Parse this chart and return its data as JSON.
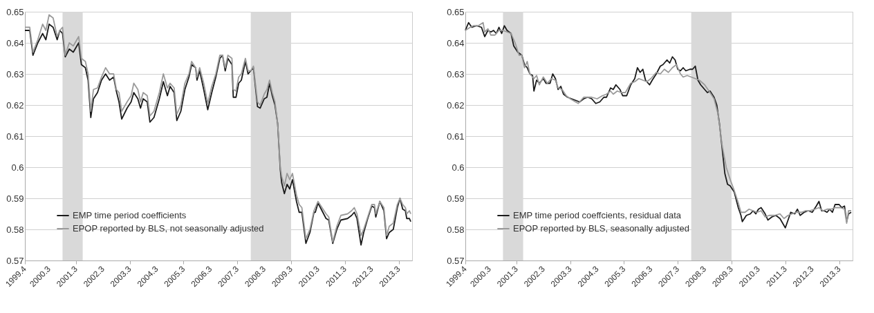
{
  "chart_data": [
    {
      "type": "line",
      "xlim": [
        1999.4,
        2013.8
      ],
      "ylim": [
        0.57,
        0.65
      ],
      "yticks": [
        0.57,
        0.58,
        0.59,
        0.6,
        0.61,
        0.62,
        0.63,
        0.64,
        0.65
      ],
      "xticks": [
        1999.4,
        2000.3,
        2001.3,
        2002.3,
        2003.3,
        2004.3,
        2005.3,
        2006.3,
        2007.3,
        2008.3,
        2009.3,
        2010.3,
        2011.3,
        2012.3,
        2013.3
      ],
      "grid": "y",
      "legend": "bottom left",
      "bands": [
        {
          "axis": "x",
          "from": 2000.8,
          "to": 2001.55,
          "color": "#d9d9d9"
        },
        {
          "axis": "x",
          "from": 2007.8,
          "to": 2009.3,
          "color": "#d9d9d9"
        }
      ],
      "series": [
        {
          "name": "EMP time period coefficients",
          "color": "#1a1a1a",
          "x": [
            1999.4,
            1999.58,
            1999.7,
            1999.88,
            2000.06,
            2000.18,
            2000.3,
            2000.45,
            2000.6,
            2000.7,
            2000.8,
            2000.9,
            2001.05,
            2001.2,
            2001.4,
            2001.5,
            2001.65,
            2001.75,
            2001.85,
            2001.95,
            2002.1,
            2002.25,
            2002.4,
            2002.55,
            2002.7,
            2002.8,
            2002.9,
            2003.0,
            2003.2,
            2003.35,
            2003.45,
            2003.6,
            2003.7,
            2003.8,
            2003.95,
            2004.05,
            2004.2,
            2004.4,
            2004.55,
            2004.7,
            2004.8,
            2004.95,
            2005.05,
            2005.2,
            2005.35,
            2005.5,
            2005.6,
            2005.75,
            2005.8,
            2005.9,
            2006.05,
            2006.2,
            2006.35,
            2006.5,
            2006.65,
            2006.75,
            2006.85,
            2006.95,
            2007.1,
            2007.15,
            2007.25,
            2007.35,
            2007.45,
            2007.6,
            2007.7,
            2007.8,
            2007.9,
            2008.05,
            2008.15,
            2008.3,
            2008.4,
            2008.5,
            2008.6,
            2008.7,
            2008.8,
            2008.9,
            2008.95,
            2009.05,
            2009.15,
            2009.25,
            2009.35,
            2009.5,
            2009.6,
            2009.7,
            2009.85,
            2010.0,
            2010.15,
            2010.2,
            2010.3,
            2010.45,
            2010.6,
            2010.7,
            2010.85,
            2011.0,
            2011.15,
            2011.4,
            2011.55,
            2011.65,
            2011.75,
            2011.9,
            2012.0,
            2012.15,
            2012.3,
            2012.4,
            2012.45,
            2012.6,
            2012.75,
            2012.85,
            2012.95,
            2013.1,
            2013.25,
            2013.35,
            2013.45,
            2013.55,
            2013.6,
            2013.7,
            2013.75
          ],
          "values": [
            0.644,
            0.644,
            0.636,
            0.64,
            0.643,
            0.641,
            0.646,
            0.645,
            0.641,
            0.644,
            0.643,
            0.6355,
            0.638,
            0.637,
            0.64,
            0.633,
            0.632,
            0.628,
            0.616,
            0.622,
            0.624,
            0.628,
            0.63,
            0.628,
            0.629,
            0.6245,
            0.621,
            0.6155,
            0.619,
            0.621,
            0.624,
            0.622,
            0.619,
            0.622,
            0.621,
            0.6145,
            0.616,
            0.622,
            0.6275,
            0.623,
            0.626,
            0.624,
            0.615,
            0.618,
            0.625,
            0.629,
            0.633,
            0.632,
            0.628,
            0.631,
            0.625,
            0.6185,
            0.624,
            0.629,
            0.635,
            0.636,
            0.631,
            0.635,
            0.633,
            0.6225,
            0.6225,
            0.627,
            0.628,
            0.634,
            0.63,
            0.631,
            0.632,
            0.6195,
            0.619,
            0.622,
            0.6225,
            0.627,
            0.623,
            0.62,
            0.614,
            0.599,
            0.595,
            0.5915,
            0.5945,
            0.593,
            0.596,
            0.589,
            0.5855,
            0.5855,
            0.5755,
            0.579,
            0.5855,
            0.5855,
            0.5885,
            0.586,
            0.5835,
            0.583,
            0.5755,
            0.58,
            0.583,
            0.5835,
            0.5845,
            0.5855,
            0.5835,
            0.575,
            0.579,
            0.5835,
            0.5875,
            0.587,
            0.584,
            0.589,
            0.586,
            0.577,
            0.579,
            0.58,
            0.587,
            0.59,
            0.5865,
            0.586,
            0.5835,
            0.5835,
            0.5825
          ]
        },
        {
          "name": "EPOP reported by BLS, not seasonally adjusted",
          "color": "#9a9a9a",
          "x": [
            1999.4,
            1999.58,
            1999.7,
            1999.88,
            2000.06,
            2000.18,
            2000.3,
            2000.45,
            2000.6,
            2000.7,
            2000.8,
            2000.9,
            2001.05,
            2001.2,
            2001.4,
            2001.5,
            2001.65,
            2001.75,
            2001.85,
            2001.95,
            2002.1,
            2002.25,
            2002.4,
            2002.55,
            2002.7,
            2002.8,
            2002.9,
            2003.0,
            2003.2,
            2003.35,
            2003.45,
            2003.6,
            2003.7,
            2003.8,
            2003.95,
            2004.05,
            2004.2,
            2004.4,
            2004.55,
            2004.7,
            2004.8,
            2004.95,
            2005.05,
            2005.2,
            2005.35,
            2005.5,
            2005.6,
            2005.75,
            2005.8,
            2005.9,
            2006.05,
            2006.2,
            2006.35,
            2006.5,
            2006.65,
            2006.75,
            2006.85,
            2006.95,
            2007.1,
            2007.15,
            2007.25,
            2007.35,
            2007.45,
            2007.6,
            2007.7,
            2007.8,
            2007.9,
            2008.05,
            2008.15,
            2008.3,
            2008.4,
            2008.5,
            2008.6,
            2008.7,
            2008.8,
            2008.9,
            2008.95,
            2009.05,
            2009.15,
            2009.25,
            2009.35,
            2009.5,
            2009.6,
            2009.7,
            2009.85,
            2010.0,
            2010.15,
            2010.2,
            2010.3,
            2010.45,
            2010.6,
            2010.7,
            2010.85,
            2011.0,
            2011.15,
            2011.4,
            2011.55,
            2011.65,
            2011.75,
            2011.9,
            2012.0,
            2012.15,
            2012.3,
            2012.4,
            2012.45,
            2012.6,
            2012.75,
            2012.85,
            2012.95,
            2013.1,
            2013.25,
            2013.35,
            2013.45,
            2013.55,
            2013.6,
            2013.7,
            2013.75
          ],
          "values": [
            0.645,
            0.645,
            0.637,
            0.641,
            0.646,
            0.644,
            0.649,
            0.648,
            0.642,
            0.644,
            0.645,
            0.636,
            0.64,
            0.639,
            0.642,
            0.635,
            0.634,
            0.63,
            0.618,
            0.625,
            0.6255,
            0.629,
            0.632,
            0.63,
            0.63,
            0.625,
            0.624,
            0.618,
            0.621,
            0.623,
            0.627,
            0.625,
            0.621,
            0.624,
            0.623,
            0.6165,
            0.618,
            0.624,
            0.63,
            0.6255,
            0.627,
            0.6255,
            0.617,
            0.62,
            0.627,
            0.63,
            0.634,
            0.632,
            0.629,
            0.632,
            0.627,
            0.6205,
            0.626,
            0.63,
            0.636,
            0.636,
            0.632,
            0.636,
            0.635,
            0.625,
            0.6245,
            0.629,
            0.63,
            0.635,
            0.631,
            0.631,
            0.6325,
            0.621,
            0.62,
            0.6235,
            0.625,
            0.628,
            0.624,
            0.621,
            0.614,
            0.6,
            0.597,
            0.594,
            0.598,
            0.596,
            0.598,
            0.591,
            0.588,
            0.587,
            0.577,
            0.58,
            0.586,
            0.587,
            0.589,
            0.587,
            0.585,
            0.584,
            0.576,
            0.581,
            0.5845,
            0.585,
            0.586,
            0.587,
            0.585,
            0.578,
            0.58,
            0.584,
            0.588,
            0.588,
            0.585,
            0.589,
            0.587,
            0.578,
            0.581,
            0.582,
            0.588,
            0.59,
            0.588,
            0.587,
            0.585,
            0.586,
            0.585
          ]
        }
      ]
    },
    {
      "type": "line",
      "xlim": [
        1999.4,
        2013.8
      ],
      "ylim": [
        0.57,
        0.65
      ],
      "yticks": [
        0.57,
        0.58,
        0.59,
        0.6,
        0.61,
        0.62,
        0.63,
        0.64,
        0.65
      ],
      "xticks": [
        1999.4,
        2000.3,
        2001.3,
        2002.3,
        2003.3,
        2004.3,
        2005.3,
        2006.3,
        2007.3,
        2008.3,
        2009.3,
        2010.3,
        2011.3,
        2012.3,
        2013.3
      ],
      "grid": "y",
      "legend": "bottom left",
      "bands": [
        {
          "axis": "x",
          "from": 2000.8,
          "to": 2001.55,
          "color": "#d9d9d9"
        },
        {
          "axis": "x",
          "from": 2007.8,
          "to": 2009.3,
          "color": "#d9d9d9"
        }
      ],
      "series": [
        {
          "name": "EMP time period coeffcients, residual data",
          "color": "#1a1a1a",
          "x": [
            1999.4,
            1999.52,
            1999.64,
            1999.82,
            2000.0,
            2000.12,
            2000.24,
            2000.35,
            2000.45,
            2000.55,
            2000.65,
            2000.75,
            2000.85,
            2000.95,
            2001.1,
            2001.2,
            2001.35,
            2001.5,
            2001.6,
            2001.7,
            2001.8,
            2001.9,
            2001.95,
            2002.05,
            2002.15,
            2002.3,
            2002.4,
            2002.55,
            2002.65,
            2002.75,
            2002.85,
            2002.95,
            2003.05,
            2003.2,
            2003.35,
            2003.5,
            2003.65,
            2003.8,
            2003.95,
            2004.1,
            2004.25,
            2004.4,
            2004.55,
            2004.65,
            2004.8,
            2004.9,
            2005.0,
            2005.15,
            2005.25,
            2005.4,
            2005.55,
            2005.7,
            2005.8,
            2005.9,
            2006.0,
            2006.1,
            2006.25,
            2006.35,
            2006.5,
            2006.65,
            2006.75,
            2006.9,
            2007.0,
            2007.1,
            2007.2,
            2007.3,
            2007.4,
            2007.5,
            2007.6,
            2007.75,
            2007.85,
            2007.95,
            2008.05,
            2008.15,
            2008.3,
            2008.4,
            2008.5,
            2008.65,
            2008.75,
            2008.85,
            2008.95,
            2009.05,
            2009.15,
            2009.25,
            2009.4,
            2009.55,
            2009.65,
            2009.7,
            2009.85,
            2010.0,
            2010.1,
            2010.2,
            2010.3,
            2010.4,
            2010.55,
            2010.65,
            2010.8,
            2010.95,
            2011.1,
            2011.3,
            2011.4,
            2011.5,
            2011.65,
            2011.75,
            2011.85,
            2012.0,
            2012.15,
            2012.3,
            2012.45,
            2012.55,
            2012.65,
            2012.75,
            2012.85,
            2012.95,
            2013.05,
            2013.15,
            2013.3,
            2013.4,
            2013.5,
            2013.58,
            2013.65,
            2013.75
          ],
          "values": [
            0.644,
            0.6465,
            0.645,
            0.6455,
            0.645,
            0.642,
            0.644,
            0.6435,
            0.644,
            0.643,
            0.645,
            0.643,
            0.6455,
            0.644,
            0.643,
            0.639,
            0.637,
            0.636,
            0.633,
            0.632,
            0.63,
            0.6295,
            0.6245,
            0.628,
            0.627,
            0.6285,
            0.627,
            0.627,
            0.63,
            0.6285,
            0.625,
            0.626,
            0.6235,
            0.6225,
            0.622,
            0.6215,
            0.621,
            0.622,
            0.6225,
            0.622,
            0.6205,
            0.621,
            0.6225,
            0.6225,
            0.6255,
            0.625,
            0.6265,
            0.625,
            0.623,
            0.623,
            0.6265,
            0.6285,
            0.632,
            0.6305,
            0.6315,
            0.628,
            0.6265,
            0.628,
            0.63,
            0.6325,
            0.633,
            0.6345,
            0.6335,
            0.6355,
            0.6345,
            0.6315,
            0.631,
            0.632,
            0.631,
            0.6315,
            0.6315,
            0.6325,
            0.628,
            0.6265,
            0.625,
            0.624,
            0.6245,
            0.6225,
            0.62,
            0.614,
            0.606,
            0.598,
            0.5945,
            0.594,
            0.592,
            0.587,
            0.5845,
            0.5825,
            0.5845,
            0.585,
            0.586,
            0.585,
            0.5865,
            0.587,
            0.585,
            0.583,
            0.584,
            0.5845,
            0.5835,
            0.5805,
            0.583,
            0.5855,
            0.585,
            0.5865,
            0.5845,
            0.5855,
            0.586,
            0.5855,
            0.5875,
            0.589,
            0.586,
            0.586,
            0.5855,
            0.5865,
            0.5855,
            0.588,
            0.588,
            0.587,
            0.5875,
            0.5825,
            0.585,
            0.5855
          ]
        },
        {
          "name": "EPOP reported by BLS, seasonally adjusted",
          "color": "#9a9a9a",
          "x": [
            1999.4,
            1999.58,
            1999.7,
            1999.88,
            2000.06,
            2000.12,
            2000.24,
            2000.35,
            2000.5,
            2000.65,
            2000.8,
            2000.95,
            2001.1,
            2001.25,
            2001.4,
            2001.5,
            2001.6,
            2001.7,
            2001.8,
            2001.95,
            2002.05,
            2002.15,
            2002.3,
            2002.45,
            2002.6,
            2002.75,
            2002.85,
            2003.0,
            2003.15,
            2003.3,
            2003.5,
            2003.6,
            2003.8,
            2003.95,
            2004.1,
            2004.3,
            2004.5,
            2004.65,
            2004.8,
            2004.9,
            2005.05,
            2005.2,
            2005.35,
            2005.55,
            2005.7,
            2005.85,
            2006.0,
            2006.15,
            2006.3,
            2006.5,
            2006.65,
            2006.8,
            2006.95,
            2007.1,
            2007.25,
            2007.4,
            2007.5,
            2007.65,
            2007.8,
            2007.95,
            2008.1,
            2008.3,
            2008.5,
            2008.65,
            2008.8,
            2008.95,
            2009.1,
            2009.25,
            2009.4,
            2009.55,
            2009.65,
            2009.8,
            2009.95,
            2010.1,
            2010.25,
            2010.4,
            2010.55,
            2010.7,
            2010.9,
            2011.1,
            2011.25,
            2011.4,
            2011.55,
            2011.7,
            2011.9,
            2012.05,
            2012.2,
            2012.4,
            2012.55,
            2012.7,
            2012.85,
            2013.0,
            2013.15,
            2013.35,
            2013.5,
            2013.58,
            2013.65,
            2013.75
          ],
          "values": [
            0.644,
            0.645,
            0.6455,
            0.6455,
            0.6465,
            0.6435,
            0.6445,
            0.6425,
            0.6425,
            0.644,
            0.644,
            0.6435,
            0.643,
            0.64,
            0.636,
            0.636,
            0.632,
            0.634,
            0.63,
            0.6285,
            0.6295,
            0.6265,
            0.629,
            0.627,
            0.6285,
            0.628,
            0.6255,
            0.625,
            0.623,
            0.622,
            0.621,
            0.6205,
            0.6225,
            0.6225,
            0.6225,
            0.622,
            0.623,
            0.6235,
            0.6245,
            0.6235,
            0.6245,
            0.624,
            0.624,
            0.627,
            0.6275,
            0.6285,
            0.628,
            0.6275,
            0.6285,
            0.6305,
            0.63,
            0.6315,
            0.6305,
            0.632,
            0.633,
            0.63,
            0.629,
            0.6295,
            0.629,
            0.6285,
            0.628,
            0.6265,
            0.624,
            0.622,
            0.617,
            0.607,
            0.6,
            0.596,
            0.5925,
            0.5885,
            0.5855,
            0.5855,
            0.5865,
            0.586,
            0.5855,
            0.586,
            0.584,
            0.5845,
            0.5845,
            0.585,
            0.5835,
            0.5845,
            0.585,
            0.5855,
            0.5855,
            0.586,
            0.586,
            0.5865,
            0.587,
            0.586,
            0.5865,
            0.5865,
            0.587,
            0.587,
            0.5865,
            0.582,
            0.586,
            0.586
          ]
        }
      ]
    }
  ]
}
